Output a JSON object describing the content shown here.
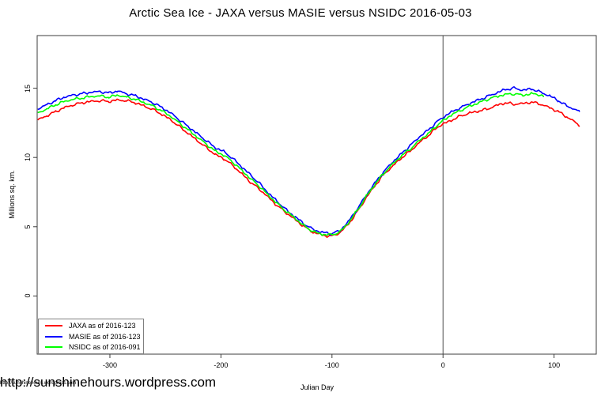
{
  "watermark": {
    "large": "http://sunshinehours.wordpress.com",
    "small": "http://sunshinehours.wordpress.com"
  },
  "chart_data": {
    "type": "line",
    "title": "Arctic Sea Ice - JAXA versus MASIE versus NSIDC 2016-05-03",
    "xlabel": "Julian Day",
    "ylabel": "Millions sq. km.",
    "xlim": [
      -365.5,
      138
    ],
    "ylim": [
      -4.2,
      18.8
    ],
    "x_ticks": [
      -300,
      -200,
      -100,
      0,
      100
    ],
    "y_ticks": [
      0,
      5,
      10,
      15
    ],
    "vline_x": 0,
    "grid": false,
    "legend_position": "bottom-left",
    "axis_color": "#3c3c3c",
    "vline_color": "#4d4d4d",
    "series": [
      {
        "name": "JAXA as of 2016-123",
        "color": "#ff0000",
        "points": [
          [
            -365,
            12.7
          ],
          [
            -357,
            13.0
          ],
          [
            -349,
            13.3
          ],
          [
            -341,
            13.6
          ],
          [
            -333,
            13.8
          ],
          [
            -325,
            13.95
          ],
          [
            -317,
            14.05
          ],
          [
            -309,
            14.1
          ],
          [
            -301,
            14.05
          ],
          [
            -293,
            14.15
          ],
          [
            -285,
            14.1
          ],
          [
            -277,
            13.95
          ],
          [
            -269,
            13.7
          ],
          [
            -261,
            13.45
          ],
          [
            -253,
            13.1
          ],
          [
            -245,
            12.7
          ],
          [
            -237,
            12.2
          ],
          [
            -229,
            11.7
          ],
          [
            -221,
            11.2
          ],
          [
            -213,
            10.7
          ],
          [
            -205,
            10.2
          ],
          [
            -197,
            9.9
          ],
          [
            -189,
            9.4
          ],
          [
            -181,
            8.8
          ],
          [
            -173,
            8.2
          ],
          [
            -165,
            7.7
          ],
          [
            -157,
            7.1
          ],
          [
            -149,
            6.5
          ],
          [
            -141,
            6.0
          ],
          [
            -133,
            5.5
          ],
          [
            -125,
            5.0
          ],
          [
            -117,
            4.6
          ],
          [
            -109,
            4.4
          ],
          [
            -101,
            4.3
          ],
          [
            -93,
            4.55
          ],
          [
            -85,
            5.2
          ],
          [
            -77,
            6.1
          ],
          [
            -69,
            7.1
          ],
          [
            -61,
            8.0
          ],
          [
            -53,
            8.8
          ],
          [
            -45,
            9.4
          ],
          [
            -37,
            10.0
          ],
          [
            -29,
            10.5
          ],
          [
            -21,
            11.1
          ],
          [
            -13,
            11.6
          ],
          [
            -5,
            12.2
          ],
          [
            0,
            12.4
          ],
          [
            8,
            12.7
          ],
          [
            16,
            13.0
          ],
          [
            24,
            13.2
          ],
          [
            32,
            13.35
          ],
          [
            40,
            13.5
          ],
          [
            48,
            13.75
          ],
          [
            56,
            13.95
          ],
          [
            64,
            13.85
          ],
          [
            72,
            13.9
          ],
          [
            80,
            14.0
          ],
          [
            88,
            13.85
          ],
          [
            96,
            13.6
          ],
          [
            104,
            13.3
          ],
          [
            112,
            12.9
          ],
          [
            118,
            12.6
          ],
          [
            123,
            12.3
          ]
        ]
      },
      {
        "name": "MASIE as of 2016-123",
        "color": "#0000ff",
        "points": [
          [
            -365,
            13.5
          ],
          [
            -357,
            13.8
          ],
          [
            -349,
            14.1
          ],
          [
            -341,
            14.35
          ],
          [
            -333,
            14.5
          ],
          [
            -325,
            14.6
          ],
          [
            -317,
            14.7
          ],
          [
            -309,
            14.75
          ],
          [
            -301,
            14.65
          ],
          [
            -293,
            14.8
          ],
          [
            -285,
            14.6
          ],
          [
            -277,
            14.45
          ],
          [
            -269,
            14.2
          ],
          [
            -261,
            13.95
          ],
          [
            -253,
            13.6
          ],
          [
            -245,
            13.2
          ],
          [
            -237,
            12.7
          ],
          [
            -229,
            12.2
          ],
          [
            -221,
            11.7
          ],
          [
            -213,
            11.2
          ],
          [
            -205,
            10.7
          ],
          [
            -197,
            10.4
          ],
          [
            -189,
            9.9
          ],
          [
            -181,
            9.3
          ],
          [
            -173,
            8.7
          ],
          [
            -165,
            8.1
          ],
          [
            -157,
            7.4
          ],
          [
            -149,
            6.8
          ],
          [
            -141,
            6.2
          ],
          [
            -133,
            5.7
          ],
          [
            -125,
            5.2
          ],
          [
            -117,
            4.8
          ],
          [
            -109,
            4.6
          ],
          [
            -101,
            4.5
          ],
          [
            -93,
            4.7
          ],
          [
            -85,
            5.4
          ],
          [
            -77,
            6.3
          ],
          [
            -69,
            7.3
          ],
          [
            -61,
            8.2
          ],
          [
            -53,
            9.0
          ],
          [
            -45,
            9.7
          ],
          [
            -37,
            10.3
          ],
          [
            -29,
            10.9
          ],
          [
            -21,
            11.5
          ],
          [
            -13,
            12.0
          ],
          [
            -5,
            12.6
          ],
          [
            0,
            12.9
          ],
          [
            8,
            13.3
          ],
          [
            16,
            13.6
          ],
          [
            24,
            13.9
          ],
          [
            32,
            14.15
          ],
          [
            40,
            14.4
          ],
          [
            48,
            14.65
          ],
          [
            56,
            14.9
          ],
          [
            64,
            15.0
          ],
          [
            72,
            14.85
          ],
          [
            80,
            14.95
          ],
          [
            88,
            14.7
          ],
          [
            96,
            14.45
          ],
          [
            104,
            14.1
          ],
          [
            112,
            13.7
          ],
          [
            118,
            13.5
          ],
          [
            123,
            13.3
          ]
        ]
      },
      {
        "name": "NSIDC as of 2016-091",
        "color": "#00ff00",
        "points": [
          [
            -365,
            13.2
          ],
          [
            -357,
            13.5
          ],
          [
            -349,
            13.8
          ],
          [
            -341,
            14.05
          ],
          [
            -333,
            14.2
          ],
          [
            -325,
            14.3
          ],
          [
            -317,
            14.4
          ],
          [
            -309,
            14.45
          ],
          [
            -301,
            14.35
          ],
          [
            -293,
            14.5
          ],
          [
            -285,
            14.35
          ],
          [
            -277,
            14.2
          ],
          [
            -269,
            13.95
          ],
          [
            -261,
            13.7
          ],
          [
            -253,
            13.35
          ],
          [
            -245,
            12.95
          ],
          [
            -237,
            12.45
          ],
          [
            -229,
            11.95
          ],
          [
            -221,
            11.45
          ],
          [
            -213,
            10.95
          ],
          [
            -205,
            10.45
          ],
          [
            -197,
            10.15
          ],
          [
            -189,
            9.65
          ],
          [
            -181,
            9.05
          ],
          [
            -173,
            8.45
          ],
          [
            -165,
            7.9
          ],
          [
            -157,
            7.25
          ],
          [
            -149,
            6.65
          ],
          [
            -141,
            6.1
          ],
          [
            -133,
            5.6
          ],
          [
            -125,
            5.05
          ],
          [
            -117,
            4.65
          ],
          [
            -109,
            4.45
          ],
          [
            -101,
            4.4
          ],
          [
            -93,
            4.6
          ],
          [
            -85,
            5.3
          ],
          [
            -77,
            6.2
          ],
          [
            -69,
            7.2
          ],
          [
            -61,
            8.1
          ],
          [
            -53,
            8.9
          ],
          [
            -45,
            9.55
          ],
          [
            -37,
            10.15
          ],
          [
            -29,
            10.65
          ],
          [
            -21,
            11.25
          ],
          [
            -13,
            11.75
          ],
          [
            -5,
            12.35
          ],
          [
            0,
            12.65
          ],
          [
            8,
            13.1
          ],
          [
            16,
            13.4
          ],
          [
            24,
            13.7
          ],
          [
            32,
            13.95
          ],
          [
            40,
            14.2
          ],
          [
            48,
            14.4
          ],
          [
            56,
            14.55
          ],
          [
            64,
            14.6
          ],
          [
            72,
            14.5
          ],
          [
            80,
            14.6
          ],
          [
            86,
            14.55
          ],
          [
            91,
            14.4
          ]
        ]
      }
    ]
  }
}
